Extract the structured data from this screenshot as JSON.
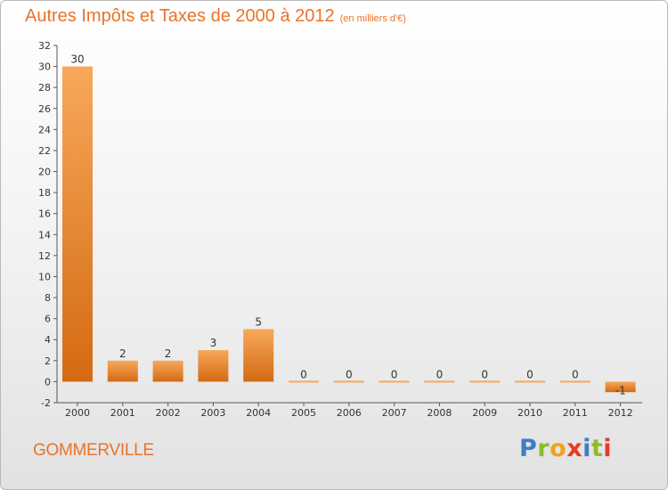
{
  "title": "Autres Impôts et Taxes de 2000 à 2012",
  "unit": "(en milliers d'€)",
  "commune": "GOMMERVILLE",
  "logo": {
    "letters": [
      "P",
      "r",
      "o",
      "x",
      "i",
      "t",
      "i"
    ],
    "colors": [
      "#3e7fc1",
      "#8cbd2a",
      "#f0a21a",
      "#e23c2a",
      "#3e7fc1",
      "#8cbd2a",
      "#e23c2a"
    ]
  },
  "colors": {
    "bar_light": "#f7a85a",
    "bar_dark": "#d46a12",
    "title": "#e8742a"
  },
  "chart_data": {
    "type": "bar",
    "categories": [
      "2000",
      "2001",
      "2002",
      "2003",
      "2004",
      "2005",
      "2006",
      "2007",
      "2008",
      "2009",
      "2010",
      "2011",
      "2012"
    ],
    "values": [
      30,
      2,
      2,
      3,
      5,
      0,
      0,
      0,
      0,
      0,
      0,
      0,
      -1
    ],
    "value_labels": [
      "30",
      "2",
      "2",
      "3",
      "5",
      "0",
      "0",
      "0",
      "0",
      "0",
      "0",
      "0",
      "-1"
    ],
    "ylim": [
      -2,
      32
    ],
    "yticks": [
      -2,
      0,
      2,
      4,
      6,
      8,
      10,
      12,
      14,
      16,
      18,
      20,
      22,
      24,
      26,
      28,
      30,
      32
    ],
    "grid": false,
    "xlabel": "",
    "ylabel": ""
  }
}
